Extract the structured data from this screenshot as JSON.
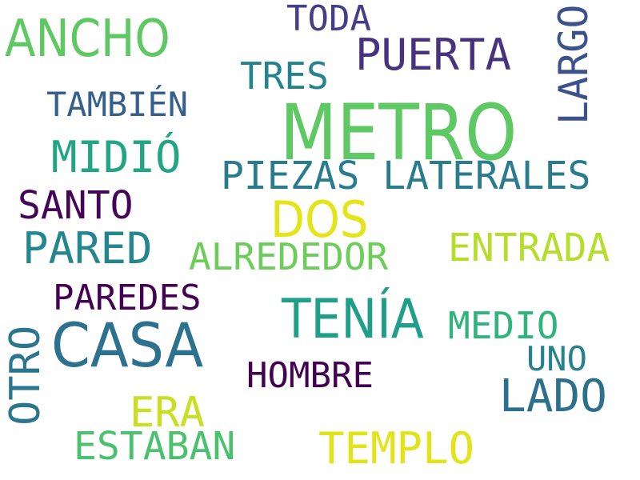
{
  "words": [
    {
      "text": "METRO",
      "color": "#5ec962"
    },
    {
      "text": "ANCHO",
      "color": "#5ec962"
    },
    {
      "text": "TODA",
      "color": "#433e85"
    },
    {
      "text": "PUERTA",
      "color": "#46327e"
    },
    {
      "text": "TRES",
      "color": "#25838e"
    },
    {
      "text": "LARGO",
      "color": "#3b528b"
    },
    {
      "text": "TAMBIÉN",
      "color": "#355f8d"
    },
    {
      "text": "MIDIÓ",
      "color": "#21a585"
    },
    {
      "text": "PIEZAS LATERALES",
      "color": "#287c8e"
    },
    {
      "text": "SANTO",
      "color": "#450457"
    },
    {
      "text": "DOS",
      "color": "#e5e419"
    },
    {
      "text": "PARED",
      "color": "#24868e"
    },
    {
      "text": "ENTRADA",
      "color": "#b5de2b"
    },
    {
      "text": "ALREDEDOR",
      "color": "#6ccd5a"
    },
    {
      "text": "PAREDES",
      "color": "#440154"
    },
    {
      "text": "TENÍA",
      "color": "#1f9e89"
    },
    {
      "text": "MEDIO",
      "color": "#2fb47c"
    },
    {
      "text": "CASA",
      "color": "#2c728e"
    },
    {
      "text": "OTRO",
      "color": "#2a768e"
    },
    {
      "text": "UNO",
      "color": "#26828e"
    },
    {
      "text": "HOMBRE",
      "color": "#440154"
    },
    {
      "text": "LADO",
      "color": "#2d708e"
    },
    {
      "text": "ERA",
      "color": "#c8e020"
    },
    {
      "text": "ESTABAN",
      "color": "#4ac16d"
    },
    {
      "text": "TEMPLO",
      "color": "#e2e418"
    }
  ]
}
